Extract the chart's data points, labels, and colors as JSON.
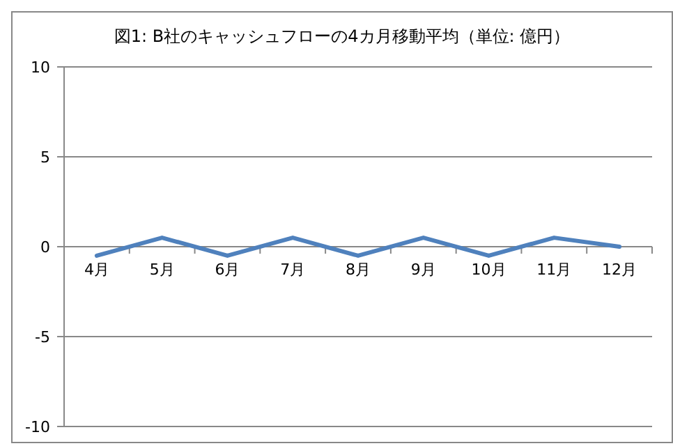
{
  "chart_data": {
    "type": "line",
    "title": "図1: B社のキャッシュフローの4カ月移動平均（単位: 億円）",
    "categories": [
      "4月",
      "5月",
      "6月",
      "7月",
      "8月",
      "9月",
      "10月",
      "11月",
      "12月"
    ],
    "series": [
      {
        "color": "#4f81bd",
        "values": [
          -0.5,
          0.5,
          -0.5,
          0.5,
          -0.5,
          0.5,
          -0.5,
          0.5,
          0
        ]
      }
    ],
    "ylim": [
      -10,
      10
    ],
    "yticks": [
      -10,
      -5,
      0,
      5,
      10
    ],
    "grid": "y",
    "marker": "none",
    "line_style": "solid"
  }
}
